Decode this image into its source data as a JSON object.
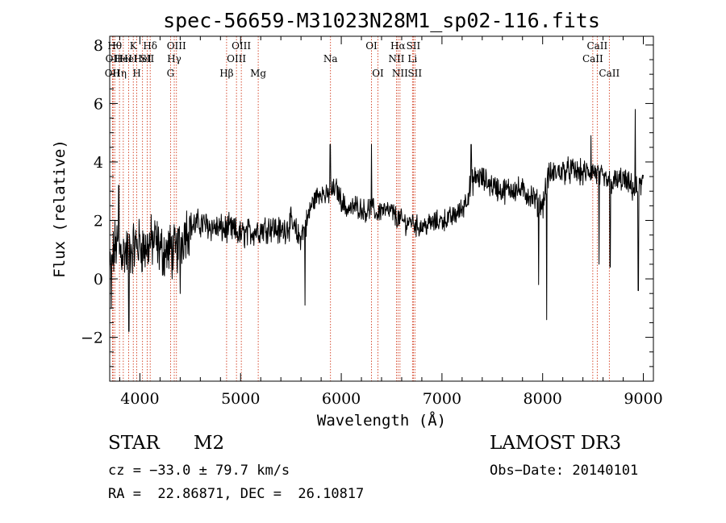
{
  "chart_data": {
    "type": "line",
    "title": "spec-56659-M31023N28M1_sp02-116.fits",
    "xlabel": "Wavelength (Å)",
    "ylabel": "Flux (relative)",
    "xlim": [
      3700,
      9100
    ],
    "ylim": [
      -3.5,
      8.3
    ],
    "x_ticks": [
      4000,
      5000,
      6000,
      7000,
      8000,
      9000
    ],
    "x_tick_labels": [
      "4000",
      "5000",
      "6000",
      "7000",
      "8000",
      "9000"
    ],
    "y_ticks": [
      -2,
      0,
      2,
      4,
      6,
      8
    ],
    "y_tick_labels": [
      "−2",
      "0",
      "2",
      "4",
      "6",
      "8"
    ],
    "grid": false,
    "line_color": "#000000",
    "marker_color": "#cc2200",
    "series": [
      {
        "name": "flux",
        "anchors_x": [
          3700,
          3730,
          3760,
          3800,
          3850,
          3900,
          3950,
          4000,
          4050,
          4100,
          4150,
          4200,
          4250,
          4300,
          4350,
          4400,
          4450,
          4500,
          4600,
          4700,
          4800,
          4900,
          5000,
          5100,
          5200,
          5300,
          5400,
          5500,
          5580,
          5650,
          5700,
          5750,
          5800,
          5850,
          5900,
          5950,
          6000,
          6050,
          6100,
          6150,
          6200,
          6250,
          6300,
          6350,
          6400,
          6450,
          6500,
          6550,
          6600,
          6650,
          6700,
          6750,
          6800,
          6900,
          7000,
          7100,
          7200,
          7250,
          7300,
          7350,
          7400,
          7450,
          7500,
          7600,
          7700,
          7800,
          7900,
          7950,
          8000,
          8050,
          8100,
          8200,
          8300,
          8400,
          8500,
          8600,
          8700,
          8800,
          8850,
          8900,
          8950,
          9000
        ],
        "anchors_y": [
          0.3,
          0.7,
          1.2,
          1.0,
          0.9,
          1.0,
          1.1,
          1.2,
          1.0,
          1.2,
          1.3,
          1.0,
          0.9,
          1.0,
          0.9,
          1.2,
          1.7,
          1.8,
          1.9,
          1.8,
          1.7,
          1.7,
          1.5,
          1.6,
          1.7,
          1.8,
          1.6,
          1.9,
          1.4,
          1.8,
          2.5,
          2.8,
          3.0,
          2.8,
          3.0,
          3.1,
          2.7,
          2.4,
          2.4,
          2.5,
          2.4,
          2.3,
          2.5,
          2.2,
          2.4,
          2.3,
          2.3,
          2.1,
          2.0,
          1.9,
          2.0,
          1.8,
          1.8,
          1.9,
          2.0,
          2.1,
          2.4,
          2.8,
          3.3,
          3.5,
          3.4,
          3.3,
          3.2,
          3.0,
          3.1,
          3.0,
          2.8,
          2.6,
          2.5,
          3.5,
          3.6,
          3.7,
          3.7,
          3.6,
          3.7,
          3.4,
          3.3,
          3.4,
          3.2,
          3.1,
          3.0,
          3.4
        ],
        "spikes": [
          {
            "x": 3715,
            "y": -1.0
          },
          {
            "x": 3790,
            "y": 3.2
          },
          {
            "x": 3890,
            "y": -1.8
          },
          {
            "x": 4320,
            "y": 0.0
          },
          {
            "x": 4400,
            "y": -0.5
          },
          {
            "x": 5640,
            "y": -0.9
          },
          {
            "x": 5890,
            "y": 4.6
          },
          {
            "x": 6300,
            "y": 4.6
          },
          {
            "x": 7290,
            "y": 4.6
          },
          {
            "x": 7960,
            "y": -0.2
          },
          {
            "x": 8040,
            "y": -1.4
          },
          {
            "x": 8480,
            "y": 4.9
          },
          {
            "x": 8560,
            "y": 0.5
          },
          {
            "x": 8670,
            "y": 0.4
          },
          {
            "x": 8920,
            "y": 5.8
          },
          {
            "x": 8950,
            "y": -0.4
          }
        ]
      }
    ],
    "lines": [
      {
        "x": 3750,
        "label": "Hθ",
        "row": 0
      },
      {
        "x": 3734,
        "label": "OII",
        "row": 1
      },
      {
        "x": 3727,
        "label": "OII",
        "row": 2
      },
      {
        "x": 3797,
        "label": "Hη",
        "row": 2
      },
      {
        "x": 3835,
        "label": "HeI",
        "row": 1
      },
      {
        "x": 3889,
        "label": "HeI",
        "row": 1
      },
      {
        "x": 3934,
        "label": "K",
        "row": 0
      },
      {
        "x": 3969,
        "label": "H",
        "row": 2
      },
      {
        "x": 4026,
        "label": "HeI",
        "row": 1
      },
      {
        "x": 4072,
        "label": "SII",
        "row": 1
      },
      {
        "x": 4102,
        "label": "Hδ",
        "row": 0
      },
      {
        "x": 4304,
        "label": "G",
        "row": 2
      },
      {
        "x": 4341,
        "label": "Hγ",
        "row": 1
      },
      {
        "x": 4363,
        "label": "OIII",
        "row": 0
      },
      {
        "x": 4861,
        "label": "Hβ",
        "row": 2
      },
      {
        "x": 4959,
        "label": "OIII",
        "row": 1
      },
      {
        "x": 5007,
        "label": "OIII",
        "row": 0
      },
      {
        "x": 5175,
        "label": "Mg",
        "row": 2
      },
      {
        "x": 5893,
        "label": "Na",
        "row": 1
      },
      {
        "x": 6300,
        "label": "OI",
        "row": 0
      },
      {
        "x": 6364,
        "label": "OI",
        "row": 2
      },
      {
        "x": 6548,
        "label": "NII",
        "row": 1
      },
      {
        "x": 6563,
        "label": "Hα",
        "row": 0
      },
      {
        "x": 6583,
        "label": "NII",
        "row": 2
      },
      {
        "x": 6707,
        "label": "Li",
        "row": 1
      },
      {
        "x": 6716,
        "label": "SII",
        "row": 0
      },
      {
        "x": 6731,
        "label": "SII",
        "row": 2
      },
      {
        "x": 8498,
        "label": "CaII",
        "row": 1
      },
      {
        "x": 8542,
        "label": "CaII",
        "row": 0
      },
      {
        "x": 8662,
        "label": "CaII",
        "row": 2
      }
    ]
  },
  "footer": {
    "object_type": "STAR",
    "subclass": "M2",
    "survey": "LAMOST DR3",
    "redshift": "cz = −33.0 ± 79.7 km/s",
    "obs_date": "Obs−Date: 20140101",
    "coords": "RA =  22.86871, DEC =  26.10817"
  }
}
